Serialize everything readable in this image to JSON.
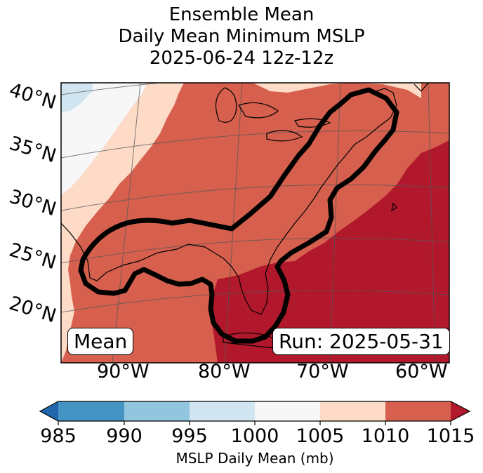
{
  "title": {
    "line1": "Ensemble Mean",
    "line2": "Daily Mean Minimum MSLP",
    "line3": "2025-06-24 12z-12z"
  },
  "map": {
    "lat_labels": [
      "40°N",
      "35°N",
      "30°N",
      "25°N",
      "20°N"
    ],
    "lon_labels": [
      "90°W",
      "80°W",
      "70°W",
      "60°W"
    ],
    "mean_box": "Mean",
    "run_box": "Run: 2025-05-31"
  },
  "colorbar": {
    "ticks": [
      "985",
      "990",
      "995",
      "1000",
      "1005",
      "1010",
      "1015"
    ],
    "label": "MSLP Daily Mean (mb)",
    "colors": {
      "below_985": "#2166ac",
      "985_990": "#4393c3",
      "990_995": "#92c5de",
      "995_1000": "#d1e5f0",
      "1000_1005": "#f7f7f7",
      "1005_1010": "#fddbc7",
      "1010_1015": "#d6604d",
      "above_1015": "#b2182b"
    }
  }
}
